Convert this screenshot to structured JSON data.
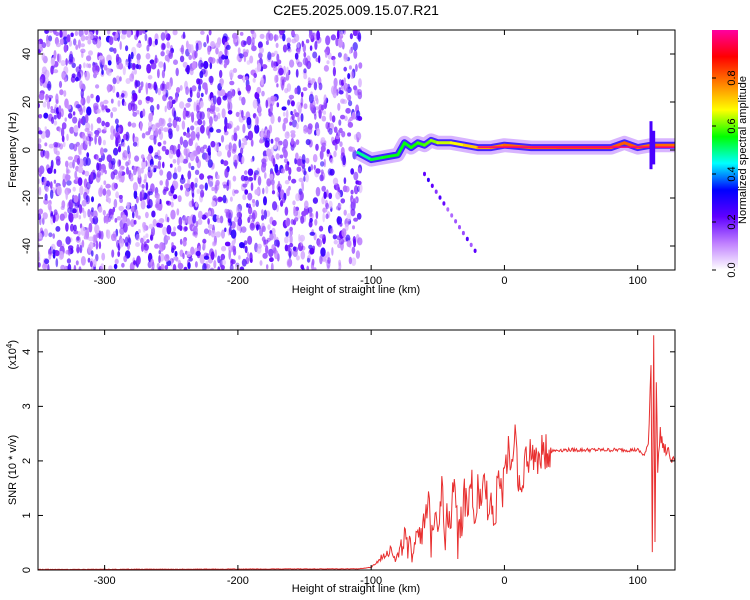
{
  "title": "C2E5.2025.009.15.07.R21",
  "chart_data": [
    {
      "type": "heatmap",
      "xlabel": "Height of straight line (km)",
      "ylabel": "Frequency (Hz)",
      "xlim": [
        -350,
        128
      ],
      "ylim": [
        -50,
        50
      ],
      "xticks": [
        -300,
        -200,
        -100,
        0,
        100
      ],
      "yticks": [
        -40,
        -20,
        0,
        20,
        40
      ],
      "colorbar": {
        "label": "Normalized spectral amplitude",
        "range": [
          0,
          1
        ],
        "ticks": [
          "0.0",
          "0.2",
          "0.4",
          "0.6",
          "0.8"
        ],
        "colors": [
          "#ffffff",
          "#c080ff",
          "#6000ff",
          "#0000ff",
          "#00ffff",
          "#00ff00",
          "#ffff00",
          "#ff8000",
          "#ff0000",
          "#ff00a0"
        ]
      },
      "noise_region": {
        "x": [
          -350,
          -108
        ],
        "level": 0.15
      },
      "tone_track": [
        {
          "x": -110,
          "f": -1,
          "a": 0.3
        },
        {
          "x": -100,
          "f": -4,
          "a": 0.4
        },
        {
          "x": -90,
          "f": -3,
          "a": 0.45
        },
        {
          "x": -80,
          "f": -2,
          "a": 0.45
        },
        {
          "x": -75,
          "f": 3,
          "a": 0.45
        },
        {
          "x": -70,
          "f": 1,
          "a": 0.45
        },
        {
          "x": -65,
          "f": 3,
          "a": 0.5
        },
        {
          "x": -60,
          "f": 2,
          "a": 0.5
        },
        {
          "x": -55,
          "f": 4,
          "a": 0.55
        },
        {
          "x": -50,
          "f": 3,
          "a": 0.6
        },
        {
          "x": -40,
          "f": 3,
          "a": 0.65
        },
        {
          "x": -30,
          "f": 2,
          "a": 0.7
        },
        {
          "x": -20,
          "f": 1,
          "a": 0.8
        },
        {
          "x": -10,
          "f": 1,
          "a": 0.85
        },
        {
          "x": 0,
          "f": 2,
          "a": 0.9
        },
        {
          "x": 20,
          "f": 1,
          "a": 0.92
        },
        {
          "x": 40,
          "f": 1,
          "a": 0.95
        },
        {
          "x": 60,
          "f": 1,
          "a": 0.95
        },
        {
          "x": 80,
          "f": 1,
          "a": 0.95
        },
        {
          "x": 90,
          "f": 3,
          "a": 0.9
        },
        {
          "x": 100,
          "f": 1,
          "a": 0.95
        },
        {
          "x": 110,
          "f": 2,
          "a": 0.85
        },
        {
          "x": 128,
          "f": 2,
          "a": 0.95
        }
      ]
    },
    {
      "type": "line",
      "xlabel": "Height of straight line (km)",
      "ylabel": "SNR (10 * v/v)",
      "yscale_label": "(x10",
      "yscale_exponent": "4",
      "xlim": [
        -350,
        128
      ],
      "ylim": [
        0,
        4.4
      ],
      "xticks": [
        -300,
        -200,
        -100,
        0,
        100
      ],
      "yticks": [
        0,
        1,
        2,
        3,
        4
      ],
      "color": "#e83030",
      "series": [
        {
          "x": [
            -350,
            -110,
            -100,
            -95,
            -90,
            -85,
            -80,
            -75,
            -70,
            -65,
            -60,
            -57,
            -55,
            -52,
            -50,
            -47,
            -45,
            -42,
            -40,
            -37,
            -35,
            -32,
            -30,
            -27,
            -25,
            -22,
            -20,
            -17,
            -15,
            -12,
            -10,
            -7,
            -5,
            -2,
            0,
            3,
            5,
            8,
            10,
            13,
            15,
            20,
            25,
            30,
            40,
            50,
            60,
            70,
            80,
            90,
            100,
            105,
            108,
            110,
            111,
            112,
            113,
            114,
            115,
            117,
            120,
            125,
            128
          ],
          "y": [
            0.01,
            0.02,
            0.05,
            0.15,
            0.3,
            0.4,
            0.2,
            0.6,
            0.3,
            0.8,
            0.7,
            1.2,
            0.5,
            1.3,
            0.8,
            1.6,
            0.6,
            1.1,
            1.0,
            1.8,
            0.5,
            0.9,
            1.4,
            1.0,
            1.7,
            0.9,
            1.5,
            1.1,
            2.0,
            0.9,
            1.4,
            0.8,
            2.0,
            1.2,
            1.8,
            2.3,
            1.9,
            2.5,
            1.9,
            1.2,
            2.0,
            2.1,
            2.1,
            2.15,
            2.2,
            2.2,
            2.2,
            2.2,
            2.2,
            2.2,
            2.2,
            2.1,
            2.3,
            3.8,
            0.3,
            4.4,
            0.5,
            3.5,
            1.9,
            2.5,
            2.2,
            2.1,
            2.05
          ]
        }
      ]
    }
  ]
}
